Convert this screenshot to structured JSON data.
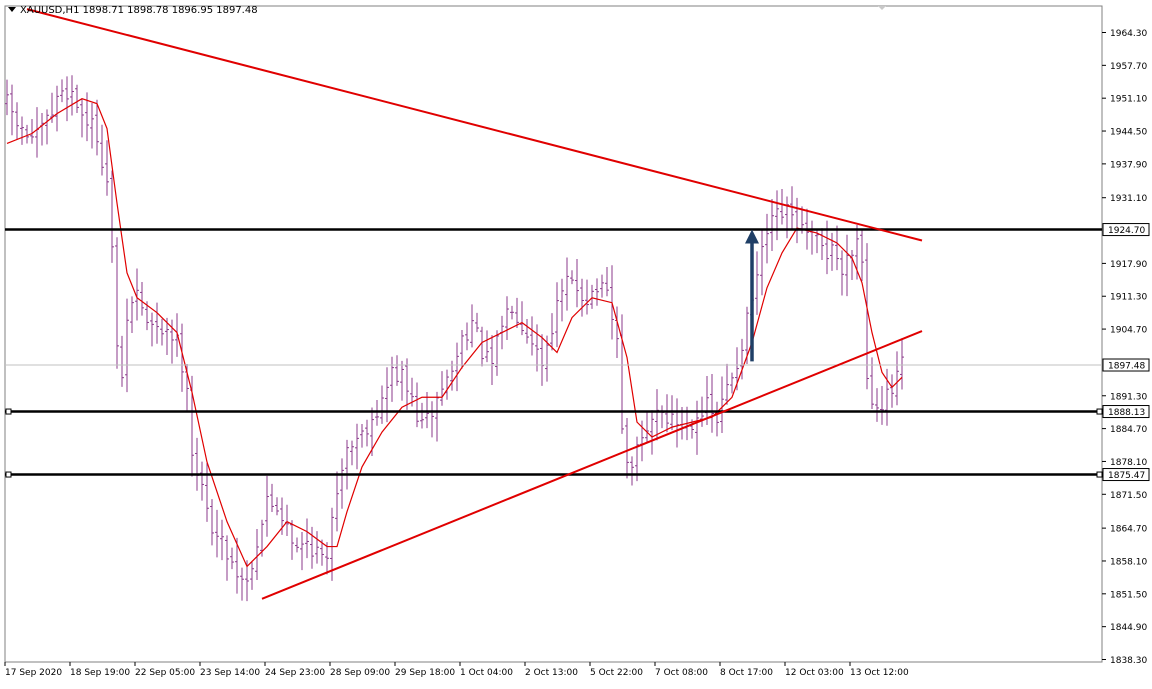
{
  "header": {
    "symbol": "XAUUSD,H1",
    "ohlc": "1898.71 1898.78 1896.95 1897.48"
  },
  "colors": {
    "candle": "#8b3a8b",
    "ma": "#e00000",
    "trendline": "#e00000",
    "level": "#000000",
    "arrow": "#1f3f66",
    "price_line": "#c0c0c0"
  },
  "chart_data": {
    "type": "line",
    "ylim": [
      1838.3,
      1969.0
    ],
    "y_ticks": [
      "1964.30",
      "1957.70",
      "1951.10",
      "1944.50",
      "1937.90",
      "1931.10",
      "1917.90",
      "1911.30",
      "1904.70",
      "1891.30",
      "1884.70",
      "1878.10",
      "1871.50",
      "1864.70",
      "1858.10",
      "1851.50",
      "1844.90",
      "1838.30"
    ],
    "x_labels": [
      "17 Sep 2020",
      "18 Sep 19:00",
      "22 Sep 05:00",
      "23 Sep 14:00",
      "24 Sep 23:00",
      "28 Sep 09:00",
      "29 Sep 18:00",
      "1 Oct 04:00",
      "2 Oct 13:00",
      "5 Oct 22:00",
      "7 Oct 08:00",
      "8 Oct 17:00",
      "12 Oct 03:00",
      "13 Oct 12:00"
    ],
    "x_label_index": [
      0,
      13,
      26,
      39,
      52,
      65,
      78,
      91,
      104,
      117,
      130,
      143,
      156,
      169
    ],
    "bars_total": 180,
    "close_path": [
      [
        0,
        1950
      ],
      [
        3,
        1944
      ],
      [
        6,
        1943
      ],
      [
        9,
        1948
      ],
      [
        11,
        1953
      ],
      [
        13,
        1952
      ],
      [
        15,
        1948
      ],
      [
        18,
        1944
      ],
      [
        20,
        1934
      ],
      [
        21,
        1920
      ],
      [
        22,
        1902
      ],
      [
        23,
        1893
      ],
      [
        24,
        1907
      ],
      [
        26,
        1912
      ],
      [
        28,
        1906
      ],
      [
        30,
        1904
      ],
      [
        32,
        1905
      ],
      [
        34,
        1902
      ],
      [
        36,
        1894
      ],
      [
        37,
        1880
      ],
      [
        38,
        1876
      ],
      [
        40,
        1868
      ],
      [
        42,
        1863
      ],
      [
        44,
        1860
      ],
      [
        46,
        1856
      ],
      [
        48,
        1854
      ],
      [
        50,
        1862
      ],
      [
        52,
        1870
      ],
      [
        54,
        1869
      ],
      [
        56,
        1866
      ],
      [
        58,
        1860
      ],
      [
        60,
        1862
      ],
      [
        62,
        1860
      ],
      [
        64,
        1857
      ],
      [
        65,
        1868
      ],
      [
        67,
        1878
      ],
      [
        69,
        1882
      ],
      [
        71,
        1884
      ],
      [
        73,
        1887
      ],
      [
        75,
        1890
      ],
      [
        77,
        1896
      ],
      [
        79,
        1895
      ],
      [
        81,
        1890
      ],
      [
        83,
        1885
      ],
      [
        85,
        1888
      ],
      [
        87,
        1893
      ],
      [
        89,
        1896
      ],
      [
        91,
        1903
      ],
      [
        93,
        1906
      ],
      [
        95,
        1900
      ],
      [
        97,
        1897
      ],
      [
        99,
        1906
      ],
      [
        101,
        1910
      ],
      [
        103,
        1906
      ],
      [
        105,
        1903
      ],
      [
        107,
        1898
      ],
      [
        108,
        1902
      ],
      [
        110,
        1909
      ],
      [
        112,
        1914
      ],
      [
        114,
        1913
      ],
      [
        116,
        1911
      ],
      [
        118,
        1913
      ],
      [
        120,
        1911
      ],
      [
        122,
        1902
      ],
      [
        123,
        1886
      ],
      [
        124,
        1876
      ],
      [
        126,
        1880
      ],
      [
        128,
        1884
      ],
      [
        130,
        1889
      ],
      [
        132,
        1887
      ],
      [
        134,
        1886
      ],
      [
        136,
        1885
      ],
      [
        138,
        1888
      ],
      [
        140,
        1889
      ],
      [
        142,
        1886
      ],
      [
        144,
        1893
      ],
      [
        146,
        1898
      ],
      [
        148,
        1906
      ],
      [
        150,
        1915
      ],
      [
        152,
        1924
      ],
      [
        154,
        1927
      ],
      [
        156,
        1928
      ],
      [
        158,
        1926
      ],
      [
        160,
        1923
      ],
      [
        162,
        1922
      ],
      [
        164,
        1920
      ],
      [
        165,
        1922
      ],
      [
        166,
        1919
      ],
      [
        167,
        1915
      ],
      [
        168,
        1920
      ],
      [
        170,
        1923
      ],
      [
        171,
        1919
      ],
      [
        172,
        1895
      ],
      [
        173,
        1891
      ],
      [
        175,
        1890
      ],
      [
        177,
        1892
      ],
      [
        179,
        1897.5
      ]
    ],
    "ma_path": [
      [
        0,
        1942
      ],
      [
        5,
        1944
      ],
      [
        10,
        1948
      ],
      [
        15,
        1951
      ],
      [
        18,
        1950
      ],
      [
        20,
        1945
      ],
      [
        22,
        1930
      ],
      [
        24,
        1916
      ],
      [
        26,
        1911
      ],
      [
        30,
        1908
      ],
      [
        34,
        1904
      ],
      [
        37,
        1892
      ],
      [
        40,
        1878
      ],
      [
        44,
        1866
      ],
      [
        48,
        1857
      ],
      [
        52,
        1861
      ],
      [
        56,
        1866
      ],
      [
        60,
        1864
      ],
      [
        64,
        1861
      ],
      [
        66,
        1861
      ],
      [
        68,
        1868
      ],
      [
        71,
        1877
      ],
      [
        75,
        1884
      ],
      [
        79,
        1889
      ],
      [
        83,
        1891
      ],
      [
        87,
        1891
      ],
      [
        91,
        1897
      ],
      [
        95,
        1902
      ],
      [
        99,
        1904
      ],
      [
        103,
        1906
      ],
      [
        107,
        1903
      ],
      [
        110,
        1900
      ],
      [
        113,
        1907
      ],
      [
        117,
        1911
      ],
      [
        121,
        1910
      ],
      [
        124,
        1899
      ],
      [
        126,
        1886
      ],
      [
        129,
        1883
      ],
      [
        133,
        1885
      ],
      [
        137,
        1886
      ],
      [
        141,
        1887
      ],
      [
        145,
        1891
      ],
      [
        149,
        1902
      ],
      [
        152,
        1913
      ],
      [
        155,
        1920
      ],
      [
        158,
        1925
      ],
      [
        162,
        1924
      ],
      [
        166,
        1922
      ],
      [
        169,
        1919
      ],
      [
        171,
        1914
      ],
      [
        173,
        1904
      ],
      [
        175,
        1896
      ],
      [
        177,
        1893
      ],
      [
        179,
        1895
      ]
    ],
    "levels": [
      {
        "label": "1924.70",
        "value": 1924.7
      },
      {
        "label": "1888.13",
        "value": 1888.13
      },
      {
        "label": "1875.47",
        "value": 1875.47
      }
    ],
    "current_price": {
      "label": "1897.48",
      "value": 1897.48
    },
    "trendlines": [
      {
        "from": [
          4,
          1969.0
        ],
        "to": [
          183,
          1922.5
        ]
      },
      {
        "from": [
          51,
          1850.5
        ],
        "to": [
          183,
          1904.3
        ]
      }
    ],
    "arrow": {
      "from": [
        149,
        1898.2
      ],
      "to": [
        149,
        1924.7
      ]
    }
  }
}
